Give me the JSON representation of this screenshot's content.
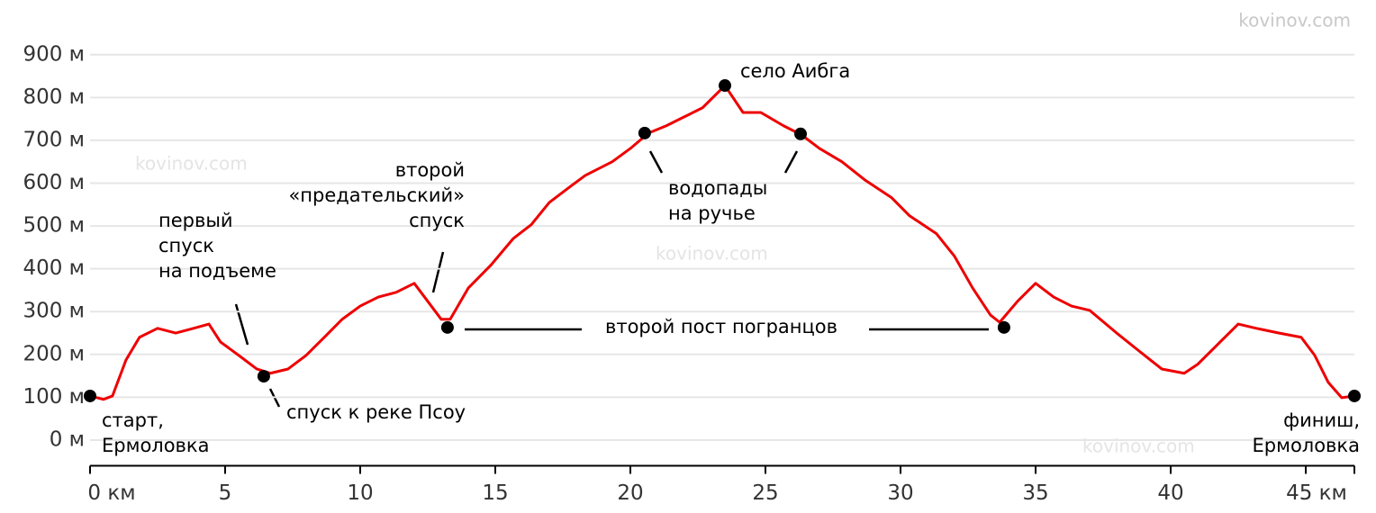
{
  "chart_data": {
    "type": "line",
    "watermark": "kovinov.com",
    "xlim": [
      0,
      46.8
    ],
    "ylim": [
      -60,
      950
    ],
    "xticks": [
      {
        "value": 0,
        "label": "0 км"
      },
      5,
      10,
      15,
      20,
      25,
      30,
      35,
      40,
      {
        "value": 45,
        "label": "45 км"
      }
    ],
    "yticks": [
      {
        "value": 0,
        "label": "0 м"
      },
      {
        "value": 100,
        "label": "100 м"
      },
      {
        "value": 200,
        "label": "200 м"
      },
      {
        "value": 300,
        "label": "300 м"
      },
      {
        "value": 400,
        "label": "400 м"
      },
      {
        "value": 500,
        "label": "500 м"
      },
      {
        "value": 600,
        "label": "600 м"
      },
      {
        "value": 700,
        "label": "700 м"
      },
      {
        "value": 800,
        "label": "800 м"
      },
      {
        "value": 900,
        "label": "900 м"
      }
    ],
    "grid": true,
    "series": [
      {
        "color": "#ee0000",
        "x": [
          0,
          0.5,
          0.83,
          1.33,
          1.83,
          2.5,
          3.17,
          3.83,
          4.4,
          4.83,
          5.5,
          6.17,
          6.67,
          7.33,
          8,
          8.67,
          9.33,
          10,
          10.67,
          11.33,
          12,
          12.5,
          13,
          13.33,
          14,
          14.83,
          15.67,
          16.33,
          17,
          17.67,
          18.33,
          19.33,
          20,
          20.67,
          21.33,
          22,
          22.67,
          23.5,
          24.17,
          24.83,
          25.67,
          26.33,
          27,
          27.83,
          28.67,
          29.67,
          30.33,
          31.33,
          32,
          32.67,
          33.33,
          33.67,
          34.33,
          35,
          35.67,
          36.33,
          37,
          38,
          38.83,
          39.67,
          40.5,
          41,
          41.67,
          42.5,
          43.17,
          44,
          44.83,
          45.33,
          45.83,
          46.33,
          46.8
        ],
        "values": [
          103,
          95,
          103,
          187,
          240,
          261,
          250,
          261,
          271,
          229,
          198,
          166,
          156,
          166,
          198,
          240,
          282,
          313,
          334,
          345,
          366,
          324,
          282,
          282,
          355,
          408,
          471,
          503,
          555,
          587,
          618,
          650,
          681,
          717,
          734,
          755,
          776,
          828,
          765,
          765,
          734,
          713,
          681,
          650,
          608,
          566,
          524,
          482,
          429,
          355,
          292,
          275,
          324,
          366,
          334,
          313,
          303,
          250,
          208,
          166,
          156,
          177,
          219,
          271,
          261,
          250,
          240,
          198,
          135,
          99,
          103
        ]
      }
    ],
    "points": {
      "x": [
        0,
        6.43,
        13.23,
        20.53,
        23.5,
        26.3,
        33.83,
        46.8
      ],
      "values": [
        103,
        149,
        263,
        717,
        828,
        715,
        263,
        103
      ],
      "color": "#000000"
    },
    "annotations": [
      {
        "text": [
          "старт,",
          "Ермоловка"
        ]
      },
      {
        "text": [
          "первый",
          "спуск",
          "на подъеме"
        ]
      },
      {
        "text": [
          "спуск к реке Псоу"
        ]
      },
      {
        "text": [
          "второй",
          "«предательский»",
          "спуск"
        ]
      },
      {
        "text": [
          "водопады",
          "на ручье"
        ]
      },
      {
        "text": [
          "село Аибга"
        ]
      },
      {
        "text": [
          "второй пост погранцов"
        ]
      },
      {
        "text": [
          "финиш,",
          "Ермоловка"
        ]
      }
    ]
  }
}
